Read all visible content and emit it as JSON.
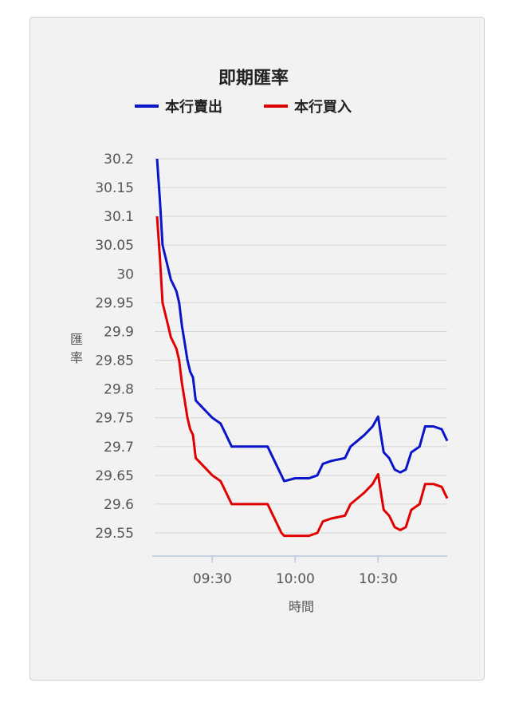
{
  "chart_data": {
    "type": "line",
    "title": "即期匯率",
    "xlabel": "時間",
    "ylabel": "匯率",
    "legend_position": "top",
    "ylim": [
      29.5,
      30.2
    ],
    "y_ticks": [
      "30.2",
      "30.15",
      "30.1",
      "30.05",
      "30",
      "29.95",
      "29.9",
      "29.85",
      "29.8",
      "29.75",
      "29.7",
      "29.65",
      "29.6",
      "29.55"
    ],
    "x_range": [
      "09:10",
      "10:55"
    ],
    "x_ticks": [
      "09:30",
      "10:00",
      "10:30"
    ],
    "series": [
      {
        "name": "本行賣出",
        "color": "#0a14c8",
        "points": [
          [
            "09:10",
            30.2
          ],
          [
            "09:11",
            30.13
          ],
          [
            "09:12",
            30.05
          ],
          [
            "09:13",
            30.03
          ],
          [
            "09:14",
            30.01
          ],
          [
            "09:15",
            29.99
          ],
          [
            "09:16",
            29.98
          ],
          [
            "09:17",
            29.97
          ],
          [
            "09:18",
            29.95
          ],
          [
            "09:19",
            29.91
          ],
          [
            "09:20",
            29.88
          ],
          [
            "09:21",
            29.85
          ],
          [
            "09:22",
            29.83
          ],
          [
            "09:23",
            29.82
          ],
          [
            "09:24",
            29.78
          ],
          [
            "09:26",
            29.77
          ],
          [
            "09:28",
            29.76
          ],
          [
            "09:30",
            29.75
          ],
          [
            "09:33",
            29.74
          ],
          [
            "09:35",
            29.72
          ],
          [
            "09:37",
            29.7
          ],
          [
            "09:40",
            29.7
          ],
          [
            "09:45",
            29.7
          ],
          [
            "09:50",
            29.7
          ],
          [
            "09:52",
            29.68
          ],
          [
            "09:55",
            29.65
          ],
          [
            "09:56",
            29.64
          ],
          [
            "10:00",
            29.645
          ],
          [
            "10:05",
            29.645
          ],
          [
            "10:08",
            29.65
          ],
          [
            "10:10",
            29.67
          ],
          [
            "10:13",
            29.675
          ],
          [
            "10:18",
            29.68
          ],
          [
            "10:20",
            29.7
          ],
          [
            "10:25",
            29.72
          ],
          [
            "10:28",
            29.735
          ],
          [
            "10:30",
            29.752
          ],
          [
            "10:31",
            29.72
          ],
          [
            "10:32",
            29.69
          ],
          [
            "10:34",
            29.68
          ],
          [
            "10:36",
            29.66
          ],
          [
            "10:38",
            29.655
          ],
          [
            "10:40",
            29.66
          ],
          [
            "10:42",
            29.69
          ],
          [
            "10:45",
            29.7
          ],
          [
            "10:47",
            29.735
          ],
          [
            "10:50",
            29.735
          ],
          [
            "10:53",
            29.73
          ],
          [
            "10:55",
            29.71
          ]
        ]
      },
      {
        "name": "本行買入",
        "color": "#e00000",
        "points": [
          [
            "09:10",
            30.1
          ],
          [
            "09:11",
            30.03
          ],
          [
            "09:12",
            29.95
          ],
          [
            "09:13",
            29.93
          ],
          [
            "09:14",
            29.91
          ],
          [
            "09:15",
            29.89
          ],
          [
            "09:16",
            29.88
          ],
          [
            "09:17",
            29.87
          ],
          [
            "09:18",
            29.85
          ],
          [
            "09:19",
            29.81
          ],
          [
            "09:20",
            29.78
          ],
          [
            "09:21",
            29.75
          ],
          [
            "09:22",
            29.73
          ],
          [
            "09:23",
            29.72
          ],
          [
            "09:24",
            29.68
          ],
          [
            "09:26",
            29.67
          ],
          [
            "09:28",
            29.66
          ],
          [
            "09:30",
            29.65
          ],
          [
            "09:33",
            29.64
          ],
          [
            "09:35",
            29.62
          ],
          [
            "09:37",
            29.6
          ],
          [
            "09:40",
            29.6
          ],
          [
            "09:45",
            29.6
          ],
          [
            "09:50",
            29.6
          ],
          [
            "09:52",
            29.58
          ],
          [
            "09:55",
            29.55
          ],
          [
            "09:56",
            29.545
          ],
          [
            "10:00",
            29.545
          ],
          [
            "10:05",
            29.545
          ],
          [
            "10:08",
            29.55
          ],
          [
            "10:10",
            29.57
          ],
          [
            "10:13",
            29.575
          ],
          [
            "10:18",
            29.58
          ],
          [
            "10:20",
            29.6
          ],
          [
            "10:25",
            29.62
          ],
          [
            "10:28",
            29.635
          ],
          [
            "10:30",
            29.652
          ],
          [
            "10:31",
            29.62
          ],
          [
            "10:32",
            29.59
          ],
          [
            "10:34",
            29.58
          ],
          [
            "10:36",
            29.56
          ],
          [
            "10:38",
            29.555
          ],
          [
            "10:40",
            29.56
          ],
          [
            "10:42",
            29.59
          ],
          [
            "10:45",
            29.6
          ],
          [
            "10:47",
            29.635
          ],
          [
            "10:50",
            29.635
          ],
          [
            "10:53",
            29.63
          ],
          [
            "10:55",
            29.61
          ]
        ]
      }
    ]
  }
}
